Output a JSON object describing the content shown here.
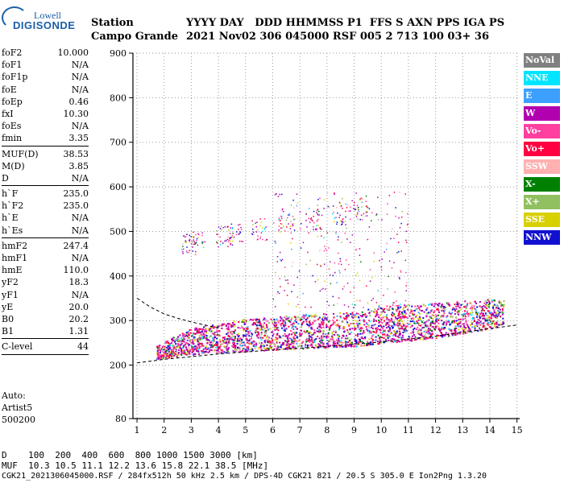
{
  "logo": {
    "brand_top": "Lowell",
    "brand_bottom": "DIGISONDE"
  },
  "header": {
    "station_label": "Station",
    "station_name": "Campo Grande",
    "col_labels": "YYYY DAY   DDD HHMMSS P1  FFS S AXN PPS IGA PS",
    "col_values": "2021 Nov02 306 045000 RSF 005 2 713 100 03+ 36"
  },
  "params": [
    {
      "name": "foF2",
      "value": "10.000"
    },
    {
      "name": "foF1",
      "value": "N/A"
    },
    {
      "name": "foF1p",
      "value": "N/A"
    },
    {
      "name": "foE",
      "value": "N/A"
    },
    {
      "name": "foEp",
      "value": "0.46"
    },
    {
      "name": "fxI",
      "value": "10.30"
    },
    {
      "name": "foEs",
      "value": "N/A"
    },
    {
      "name": "fmin",
      "value": "3.35",
      "sep_after": true
    },
    {
      "name": "MUF(D)",
      "value": "38.53"
    },
    {
      "name": "M(D)",
      "value": "3.85"
    },
    {
      "name": "D",
      "value": "N/A",
      "sep_after": true
    },
    {
      "name": "h`F",
      "value": "235.0"
    },
    {
      "name": "h`F2",
      "value": "235.0"
    },
    {
      "name": "h`E",
      "value": "N/A"
    },
    {
      "name": "h`Es",
      "value": "N/A",
      "sep_after": true
    },
    {
      "name": "hmF2",
      "value": "247.4"
    },
    {
      "name": "hmF1",
      "value": "N/A"
    },
    {
      "name": "hmE",
      "value": "110.0"
    },
    {
      "name": "yF2",
      "value": "18.3"
    },
    {
      "name": "yF1",
      "value": "N/A"
    },
    {
      "name": "yE",
      "value": "20.0"
    },
    {
      "name": "B0",
      "value": "20.2"
    },
    {
      "name": "B1",
      "value": "1.31",
      "sep_after": true
    },
    {
      "name": "C-level",
      "value": "44",
      "sep_after": true
    }
  ],
  "auto": {
    "line1": "Auto:",
    "line2": "Artist5",
    "line3": "500200"
  },
  "legend": [
    {
      "label": "NoVal",
      "color": "#808080"
    },
    {
      "label": "NNE",
      "color": "#00e5ff"
    },
    {
      "label": "E",
      "color": "#3ba0ff"
    },
    {
      "label": "W",
      "color": "#b000b0"
    },
    {
      "label": "Vo-",
      "color": "#ff40a0"
    },
    {
      "label": "Vo+",
      "color": "#ff0040"
    },
    {
      "label": "SSW",
      "color": "#ffb0b0"
    },
    {
      "label": "X-",
      "color": "#008000"
    },
    {
      "label": "X+",
      "color": "#90c060"
    },
    {
      "label": "SSE",
      "color": "#d8d000"
    },
    {
      "label": "NNW",
      "color": "#1010d0"
    }
  ],
  "footer": {
    "d_row": "D    100  200  400  600  800 1000 1500 3000 [km]",
    "muf_row": "MUF  10.3 10.5 11.1 12.2 13.6 15.8 22.1 38.5 [MHz]",
    "info_row": "CGK21_2021306045000.RSF / 284fx512h 50 kHz 2.5 km / DPS-4D CGK21 821 / 20.5 S 305.0 E Ion2Png 1.3.20"
  },
  "chart_data": {
    "type": "scatter",
    "title": "",
    "xlabel": "",
    "ylabel": "",
    "xlim": [
      0.85,
      15.1
    ],
    "ylim": [
      80,
      900
    ],
    "x_ticks": [
      1,
      2,
      3,
      4,
      5,
      6,
      7,
      8,
      9,
      10,
      11,
      12,
      13,
      14,
      15
    ],
    "y_ticks": [
      80,
      200,
      300,
      400,
      500,
      600,
      700,
      800,
      900
    ],
    "grid": true,
    "legend_position": "right",
    "series": [
      {
        "name": "F2 main trace",
        "band": [
          [
            1.7,
            215,
            245
          ],
          [
            3,
            225,
            285
          ],
          [
            5,
            232,
            305
          ],
          [
            7,
            238,
            315
          ],
          [
            9,
            243,
            320
          ],
          [
            10,
            250,
            335
          ],
          [
            12,
            262,
            340
          ],
          [
            13,
            272,
            345
          ],
          [
            14,
            283,
            350
          ],
          [
            14.5,
            290,
            350
          ]
        ]
      },
      {
        "name": "Second hop",
        "points_x_y": [
          [
            2.9,
            470
          ],
          [
            3.2,
            480
          ],
          [
            4.2,
            490
          ],
          [
            4.6,
            495
          ],
          [
            5.5,
            505
          ],
          [
            6.5,
            520
          ],
          [
            7.5,
            530
          ],
          [
            8.5,
            540
          ],
          [
            9.2,
            550
          ]
        ]
      }
    ],
    "model_curves": [
      {
        "name": "lower",
        "x_y": [
          [
            1,
            205
          ],
          [
            2,
            213
          ],
          [
            4,
            225
          ],
          [
            6,
            234
          ],
          [
            8,
            242
          ],
          [
            10,
            252
          ],
          [
            12,
            265
          ],
          [
            14,
            282
          ],
          [
            15,
            290
          ]
        ]
      },
      {
        "name": "upper",
        "x_y": [
          [
            1,
            350
          ],
          [
            1.5,
            330
          ],
          [
            2,
            315
          ],
          [
            2.5,
            305
          ],
          [
            3,
            297
          ],
          [
            3.5,
            290
          ],
          [
            4,
            283
          ]
        ]
      }
    ]
  }
}
